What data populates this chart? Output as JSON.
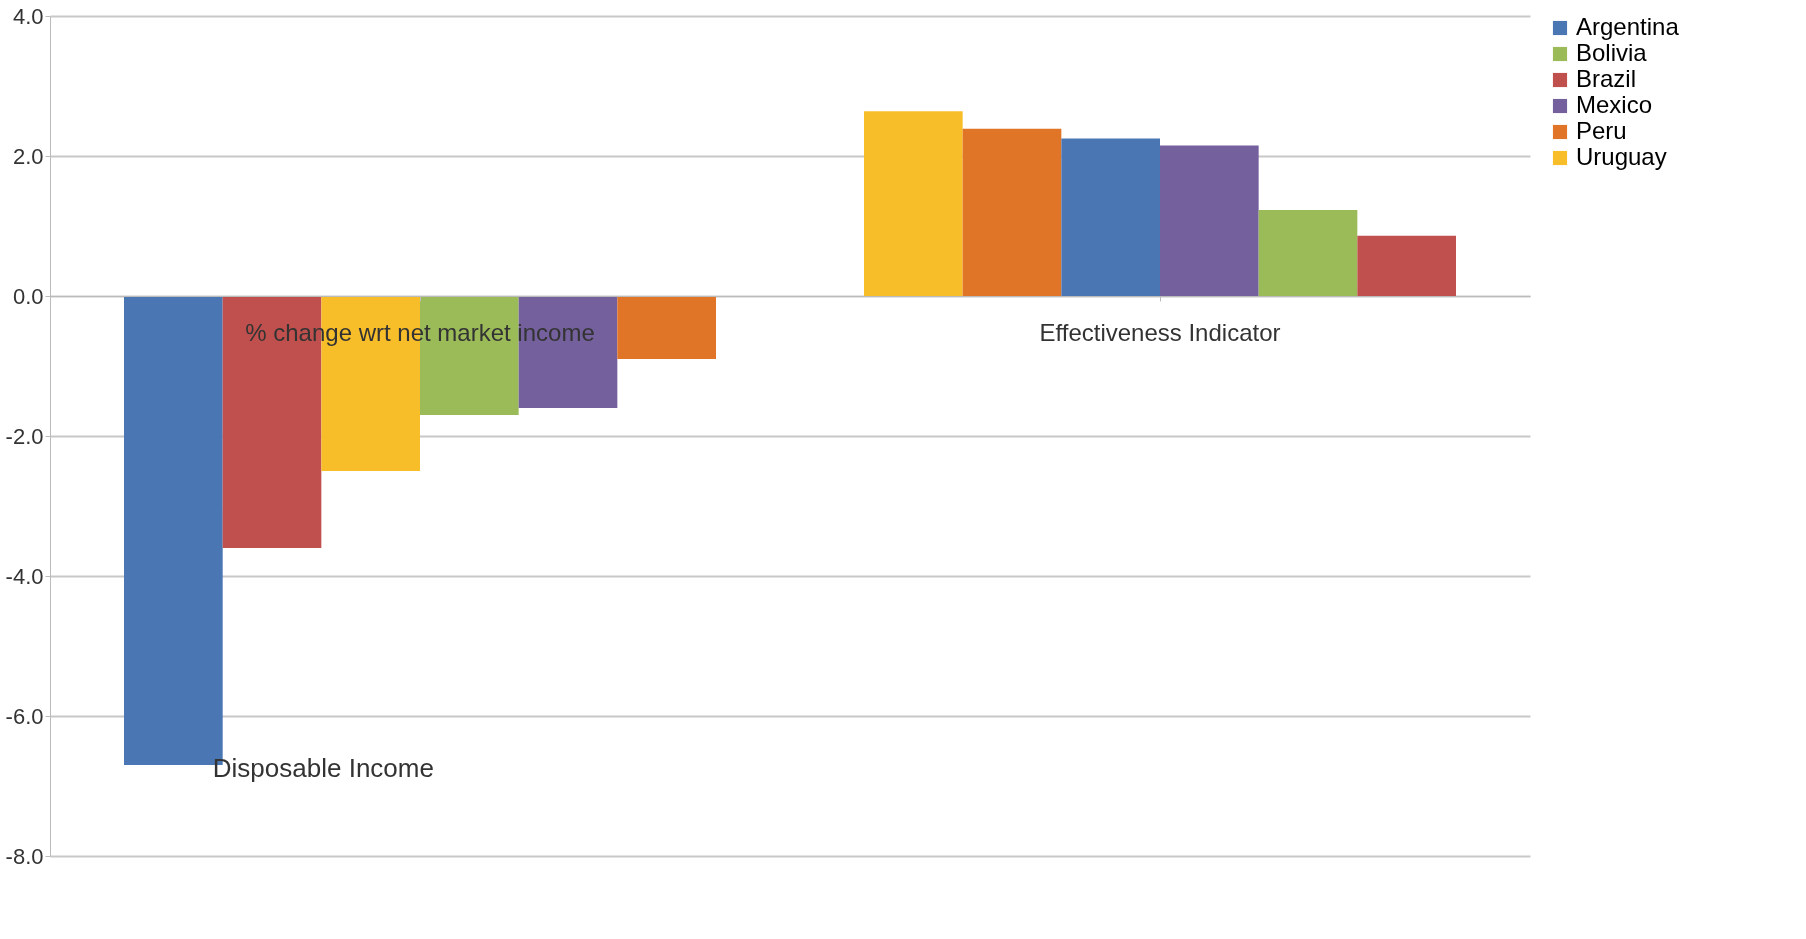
{
  "chart_data": {
    "type": "bar",
    "categories": [
      "% change wrt net market income",
      "Effectiveness Indicator"
    ],
    "series": [
      {
        "name": "Argentina",
        "color": "#4a76b4",
        "values": [
          -6.7,
          2.25
        ]
      },
      {
        "name": "Bolivia",
        "color": "#9bbb59",
        "values": [
          -1.7,
          1.23
        ]
      },
      {
        "name": "Brazil",
        "color": "#c0504d",
        "values": [
          -3.6,
          0.86
        ]
      },
      {
        "name": "Mexico",
        "color": "#74609c",
        "values": [
          -1.6,
          2.15
        ]
      },
      {
        "name": "Peru",
        "color": "#e07427",
        "values": [
          -0.9,
          2.39
        ]
      },
      {
        "name": "Uruguay",
        "color": "#f8be2a",
        "values": [
          -2.5,
          2.64
        ]
      }
    ],
    "ylim": [
      -8,
      4
    ],
    "yticks": [
      {
        "value": -8,
        "label": "-8.0"
      },
      {
        "value": -6,
        "label": "-6.0"
      },
      {
        "value": -4,
        "label": "-4.0"
      },
      {
        "value": -2,
        "label": "-2.0"
      },
      {
        "value": 0,
        "label": "0.0"
      },
      {
        "value": 2,
        "label": "2.0"
      },
      {
        "value": 4,
        "label": "4.0"
      }
    ],
    "grid": "y",
    "legend": "right",
    "annotations": [
      "Disposable Income"
    ]
  }
}
